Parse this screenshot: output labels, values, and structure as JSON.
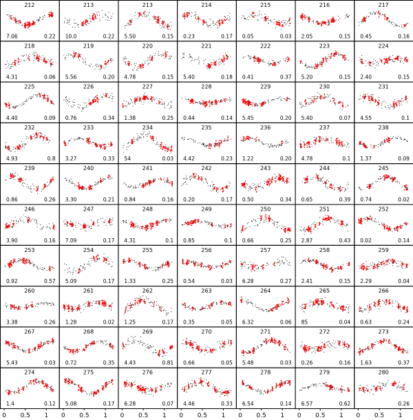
{
  "chart_data": {
    "type": "scatter",
    "title": "",
    "xlabel": "",
    "ylabel": "",
    "xlim": [
      -0.1,
      1.3
    ],
    "grid": false,
    "layout": {
      "rows": 10,
      "cols": 7
    },
    "x_tick_labels": [
      "0",
      "0.5",
      "1"
    ],
    "x_ticks": [
      0,
      0.5,
      1
    ],
    "series_colors": {
      "obs": "#000000",
      "model": "#ff0000"
    },
    "panels": [
      {
        "id": "212",
        "left": "7.06",
        "right": "0.22"
      },
      {
        "id": "213",
        "left": "10.0",
        "right": "0.22"
      },
      {
        "id": "213",
        "left": "5.50",
        "right": "0.15"
      },
      {
        "id": "214",
        "left": "0.23",
        "right": "0.17"
      },
      {
        "id": "215",
        "left": "0.05",
        "right": "0.03"
      },
      {
        "id": "216",
        "left": "2.05",
        "right": "0.15"
      },
      {
        "id": "217",
        "left": "0.45",
        "right": "0.16"
      },
      {
        "id": "218",
        "left": "4.31",
        "right": "0.06"
      },
      {
        "id": "219",
        "left": "5.56",
        "right": "0.20"
      },
      {
        "id": "220",
        "left": "4.78",
        "right": "0.15"
      },
      {
        "id": "221",
        "left": "5.40",
        "right": "0.18"
      },
      {
        "id": "222",
        "left": "0.41",
        "right": "0.37"
      },
      {
        "id": "223",
        "left": "5.20",
        "right": "0.15"
      },
      {
        "id": "224",
        "left": "2.40",
        "right": "0.15"
      },
      {
        "id": "225",
        "left": "4.40",
        "right": "0.09"
      },
      {
        "id": "226",
        "left": "0.76",
        "right": "0.34"
      },
      {
        "id": "227",
        "left": "1.38",
        "right": "0.25"
      },
      {
        "id": "228",
        "left": "0.44",
        "right": "0.14"
      },
      {
        "id": "229",
        "left": "5.45",
        "right": "0.20"
      },
      {
        "id": "230",
        "left": "5.40",
        "right": "0.07"
      },
      {
        "id": "231",
        "left": "4.55",
        "right": "0.1"
      },
      {
        "id": "232",
        "left": "4.93",
        "right": "0.8"
      },
      {
        "id": "233",
        "left": "3.27",
        "right": "0.33"
      },
      {
        "id": "234",
        "left": "54",
        "right": "0.03"
      },
      {
        "id": "235",
        "left": "4.42",
        "right": "0.23"
      },
      {
        "id": "236",
        "left": "1.22",
        "right": "0.20"
      },
      {
        "id": "237",
        "left": "4.78",
        "right": "0.1"
      },
      {
        "id": "238",
        "left": "1.37",
        "right": "0.09"
      },
      {
        "id": "239",
        "left": "0.86",
        "right": "0.26"
      },
      {
        "id": "240",
        "left": "3.30",
        "right": "0.21"
      },
      {
        "id": "241",
        "left": "0.84",
        "right": "0.16"
      },
      {
        "id": "242",
        "left": "0.20",
        "right": "0.17"
      },
      {
        "id": "243",
        "left": "0.50",
        "right": "0.34"
      },
      {
        "id": "244",
        "left": "0.65",
        "right": "0.39"
      },
      {
        "id": "245",
        "left": "0.74",
        "right": "0.02"
      },
      {
        "id": "246",
        "left": "3.90",
        "right": "0.16"
      },
      {
        "id": "247",
        "left": "7.09",
        "right": "0.17"
      },
      {
        "id": "248",
        "left": "4.31",
        "right": "0.1"
      },
      {
        "id": "249",
        "left": "0.85",
        "right": "0.1"
      },
      {
        "id": "250",
        "left": "0.66",
        "right": "0.25"
      },
      {
        "id": "251",
        "left": "2.87",
        "right": "0.43"
      },
      {
        "id": "252",
        "left": "0.02",
        "right": "0.14"
      },
      {
        "id": "253",
        "left": "0.92",
        "right": "0.57"
      },
      {
        "id": "254",
        "left": "5.09",
        "right": "0.17"
      },
      {
        "id": "255",
        "left": "1.33",
        "right": "0.25"
      },
      {
        "id": "256",
        "left": "0.54",
        "right": "0.03"
      },
      {
        "id": "257",
        "left": "6.28",
        "right": "0.27"
      },
      {
        "id": "258",
        "left": "2.41",
        "right": "0.15"
      },
      {
        "id": "259",
        "left": "2.29",
        "right": "0.04"
      },
      {
        "id": "260",
        "left": "3.38",
        "right": "0.26"
      },
      {
        "id": "261",
        "left": "1.28",
        "right": "0.02"
      },
      {
        "id": "262",
        "left": "1.25",
        "right": "0.17"
      },
      {
        "id": "263",
        "left": "0.35",
        "right": "0.05"
      },
      {
        "id": "264",
        "left": "6.32",
        "right": "0.06"
      },
      {
        "id": "265",
        "left": "85",
        "right": "0.04"
      },
      {
        "id": "266",
        "left": "0.63",
        "right": "0.24"
      },
      {
        "id": "267",
        "left": "5.43",
        "right": "0.03"
      },
      {
        "id": "268",
        "left": "0.72",
        "right": "0.35"
      },
      {
        "id": "269",
        "left": "4.43",
        "right": "0.81"
      },
      {
        "id": "270",
        "left": "0.66",
        "right": "0.05"
      },
      {
        "id": "271",
        "left": "5.48",
        "right": "0.03"
      },
      {
        "id": "272",
        "left": "0.26",
        "right": "0.16"
      },
      {
        "id": "273",
        "left": "1.63",
        "right": "0.37"
      },
      {
        "id": "274",
        "left": "1.4",
        "right": "0.12"
      },
      {
        "id": "275",
        "left": "5.08",
        "right": "0.17"
      },
      {
        "id": "276",
        "left": "6.28",
        "right": "0.07"
      },
      {
        "id": "277",
        "left": "4.46",
        "right": "0.33"
      },
      {
        "id": "278",
        "left": "6.54",
        "right": "0.14"
      },
      {
        "id": "279",
        "left": "6.57",
        "right": "0.62"
      },
      {
        "id": "280",
        "left": "",
        "right": "0.26"
      }
    ]
  }
}
